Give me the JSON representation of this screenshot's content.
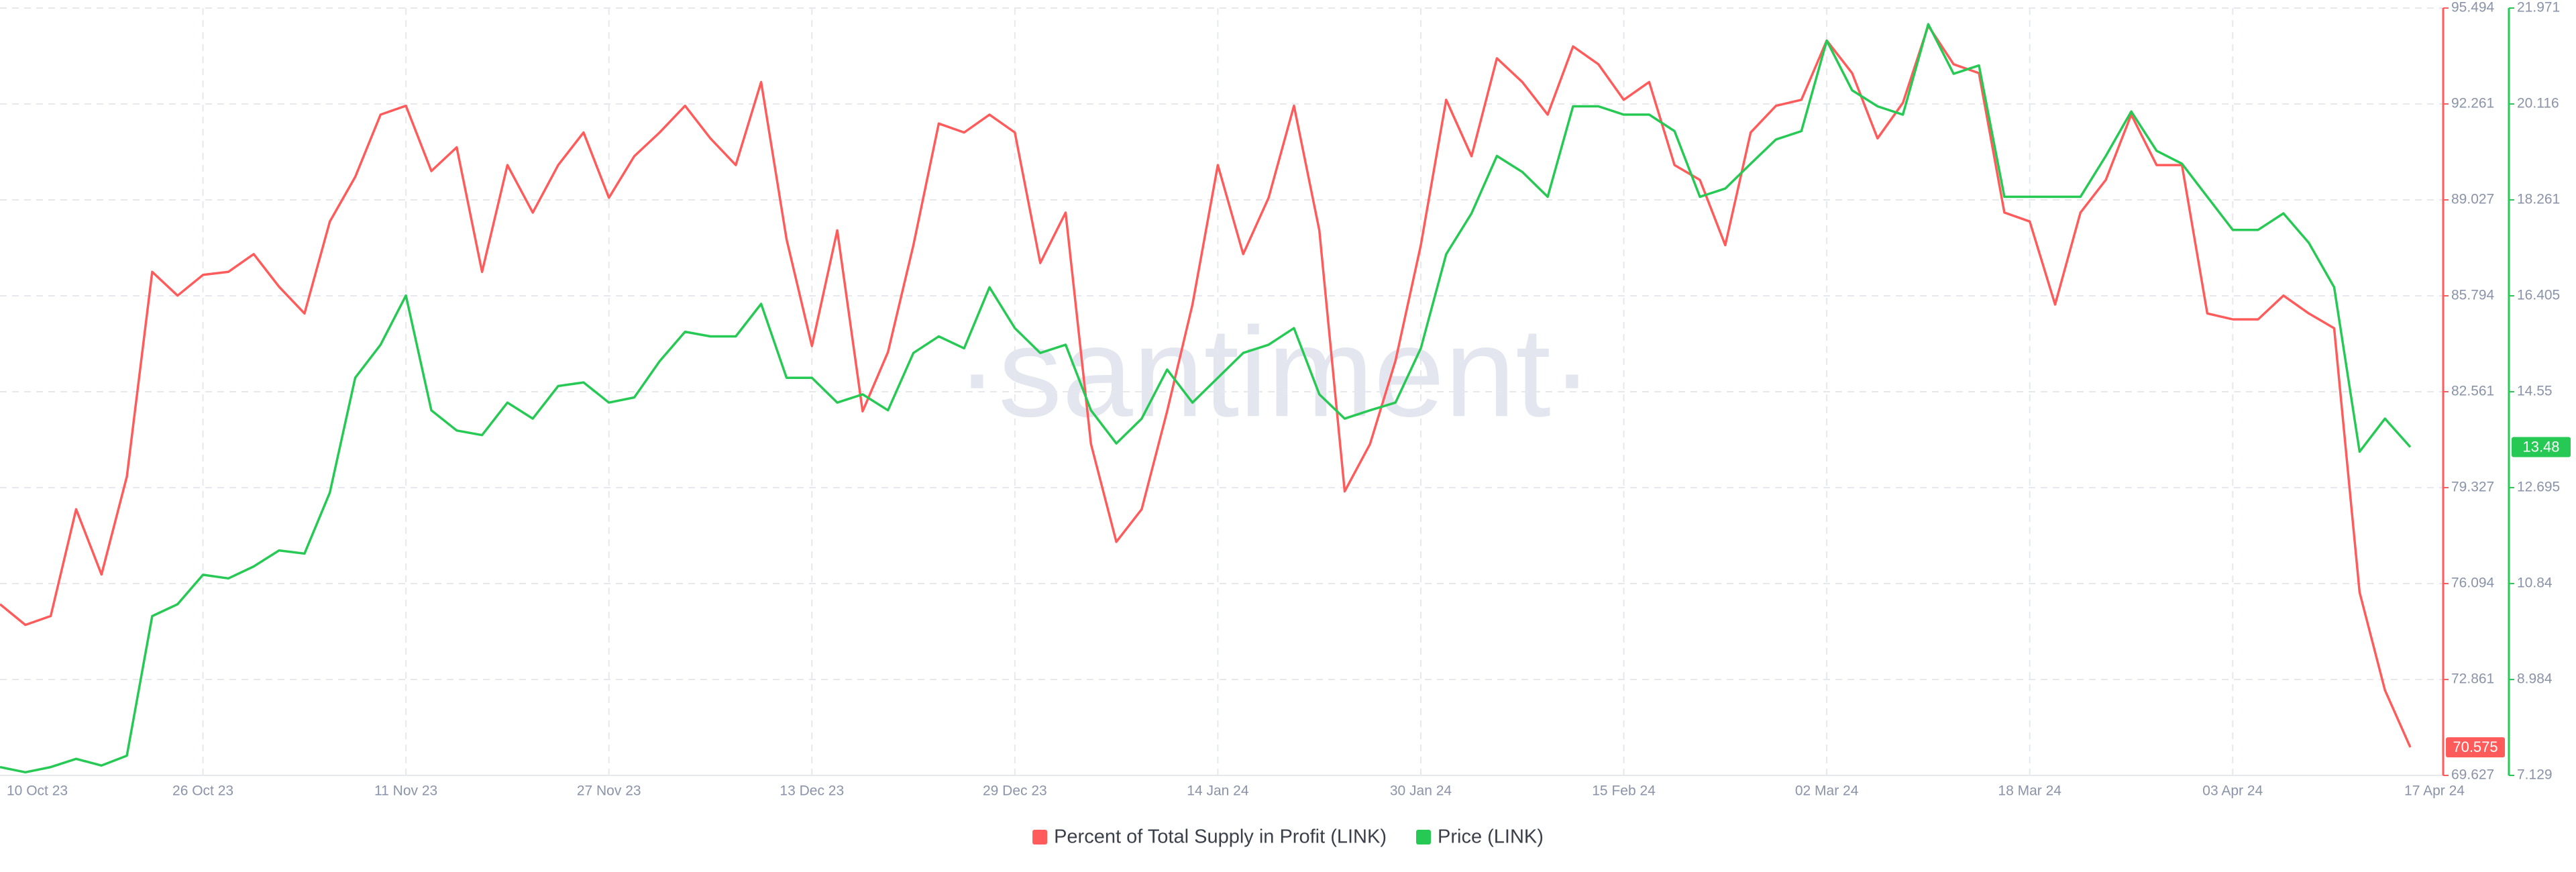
{
  "chart_data": {
    "type": "line",
    "watermark": "·santiment·",
    "categories": [
      "10 Oct 23",
      null,
      null,
      null,
      null,
      null,
      null,
      null,
      "26 Oct 23",
      null,
      null,
      null,
      null,
      null,
      null,
      null,
      "11 Nov 23",
      null,
      null,
      null,
      null,
      null,
      null,
      null,
      "27 Nov 23",
      null,
      null,
      null,
      null,
      null,
      null,
      null,
      "13 Dec 23",
      null,
      null,
      null,
      null,
      null,
      null,
      null,
      "29 Dec 23",
      null,
      null,
      null,
      null,
      null,
      null,
      null,
      "14 Jan 24",
      null,
      null,
      null,
      null,
      null,
      null,
      null,
      "30 Jan 24",
      null,
      null,
      null,
      null,
      null,
      null,
      null,
      "15 Feb 24",
      null,
      null,
      null,
      null,
      null,
      null,
      null,
      "02 Mar 24",
      null,
      null,
      null,
      null,
      null,
      null,
      null,
      "18 Mar 24",
      null,
      null,
      null,
      null,
      null,
      null,
      null,
      "03 Apr 24",
      null,
      null,
      null,
      null,
      null,
      null,
      "17 Apr 24"
    ],
    "series": [
      {
        "name": "Percent of Total Supply in Profit (LINK)",
        "color": "#ff5b5b",
        "axis": "y",
        "values": [
          75.4,
          74.7,
          75.0,
          78.6,
          76.4,
          79.7,
          86.6,
          85.8,
          86.5,
          86.6,
          87.2,
          86.1,
          85.2,
          88.3,
          89.8,
          91.9,
          92.2,
          90.0,
          90.8,
          86.6,
          90.2,
          88.6,
          90.2,
          91.3,
          89.1,
          90.5,
          91.3,
          92.2,
          91.1,
          90.2,
          93.0,
          87.7,
          84.1,
          88.0,
          81.9,
          83.9,
          87.5,
          91.6,
          91.3,
          91.9,
          91.3,
          86.9,
          88.6,
          80.8,
          77.5,
          78.6,
          81.9,
          85.5,
          90.2,
          87.2,
          89.1,
          92.2,
          88.0,
          79.2,
          80.8,
          83.6,
          87.5,
          92.4,
          90.5,
          93.8,
          93.0,
          91.9,
          94.2,
          93.6,
          92.4,
          93.0,
          90.2,
          89.7,
          87.5,
          91.3,
          92.2,
          92.4,
          94.4,
          93.3,
          91.1,
          92.3,
          94.9,
          93.6,
          93.3,
          88.6,
          88.3,
          85.5,
          88.6,
          89.7,
          91.9,
          90.2,
          90.2,
          85.2,
          85.0,
          85.0,
          85.8,
          85.2,
          84.7,
          75.8,
          72.5,
          70.575
        ]
      },
      {
        "name": "Price (LINK)",
        "color": "#26c953",
        "axis": "y2",
        "values": [
          7.29,
          7.19,
          7.29,
          7.45,
          7.32,
          7.51,
          10.21,
          10.44,
          11.01,
          10.94,
          11.17,
          11.48,
          11.42,
          12.6,
          14.82,
          15.46,
          16.41,
          14.19,
          13.8,
          13.71,
          14.34,
          14.03,
          14.66,
          14.73,
          14.34,
          14.44,
          15.14,
          15.71,
          15.62,
          15.62,
          16.25,
          14.82,
          14.82,
          14.34,
          14.5,
          14.19,
          15.3,
          15.62,
          15.39,
          16.57,
          15.78,
          15.3,
          15.46,
          14.19,
          13.55,
          14.03,
          14.98,
          14.34,
          14.82,
          15.3,
          15.46,
          15.78,
          14.5,
          14.03,
          14.19,
          14.34,
          15.39,
          17.21,
          18.0,
          19.11,
          18.8,
          18.32,
          20.07,
          20.07,
          19.91,
          19.91,
          19.59,
          18.32,
          18.48,
          18.96,
          19.43,
          19.59,
          21.34,
          20.38,
          20.07,
          19.91,
          21.66,
          20.7,
          20.86,
          18.32,
          18.32,
          18.32,
          18.32,
          19.11,
          19.97,
          19.21,
          18.96,
          18.32,
          17.68,
          17.68,
          18.0,
          17.43,
          16.57,
          13.39,
          14.03,
          13.48
        ]
      }
    ],
    "ylim": [
      69.627,
      95.494
    ],
    "yticks": [
      69.627,
      72.861,
      76.094,
      79.327,
      82.561,
      85.794,
      89.027,
      92.261,
      95.494
    ],
    "y2lim": [
      7.129,
      21.971
    ],
    "y2ticks": [
      7.129,
      8.984,
      10.84,
      12.695,
      14.55,
      16.405,
      18.261,
      20.116,
      21.971
    ],
    "grid": true,
    "legend": "bottom"
  }
}
